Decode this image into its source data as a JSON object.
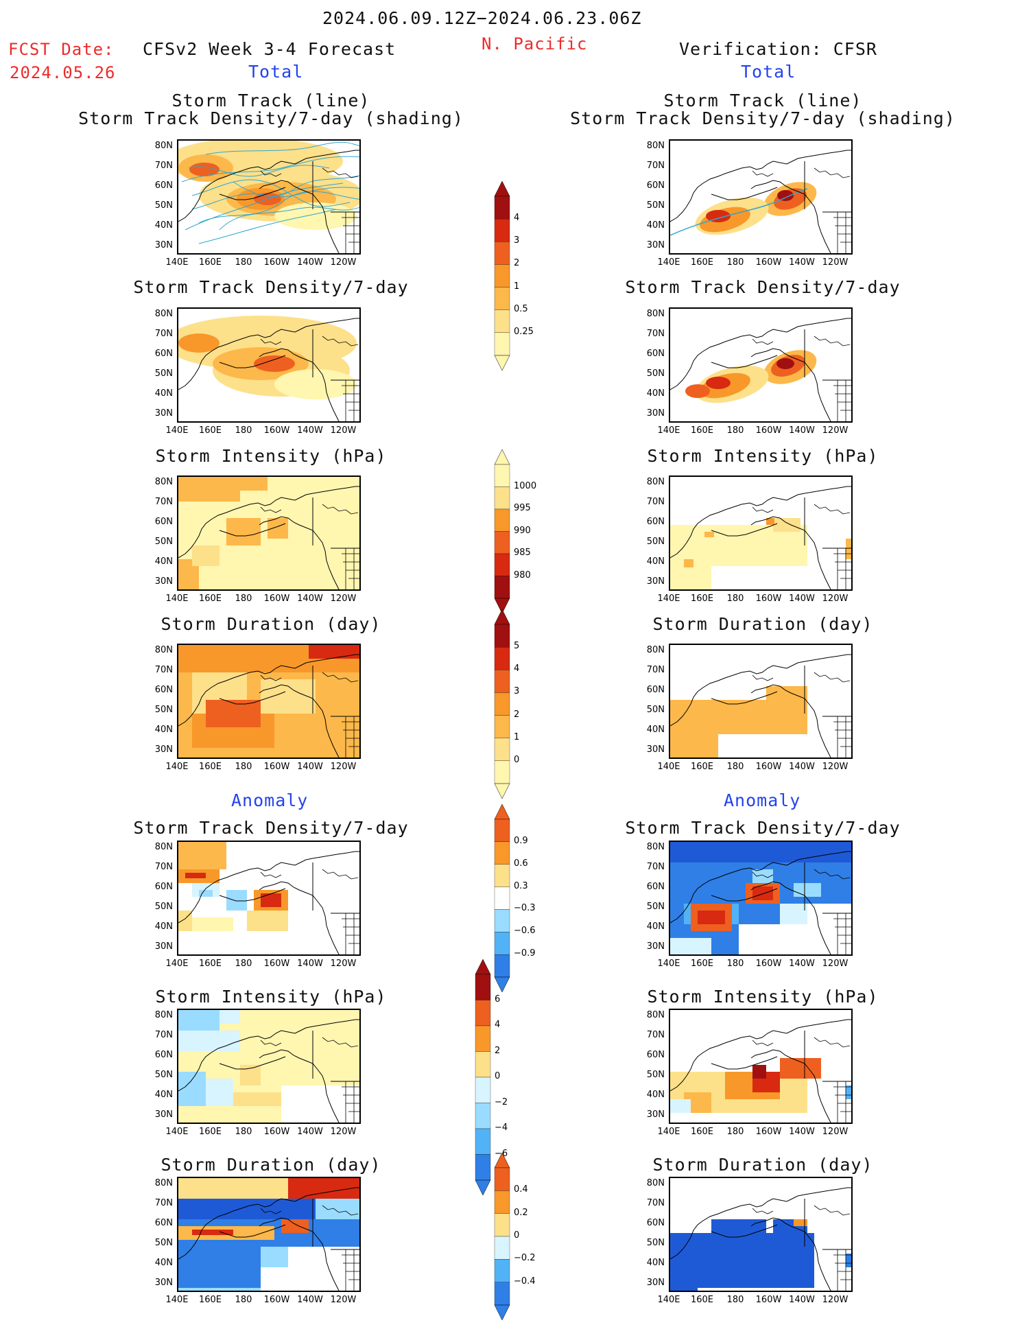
{
  "header": {
    "date_range": "2024.06.09.12Z−2024.06.23.06Z",
    "fcst_label": "FCST Date:",
    "fcst_date": "2024.05.26",
    "model_title": "CFSv2 Week 3-4 Forecast",
    "region": "N. Pacific",
    "verification": "Verification: CFSR",
    "total_left": "Total",
    "total_right": "Total",
    "anomaly_left": "Anomaly",
    "anomaly_right": "Anomaly"
  },
  "axis": {
    "lat_ticks": [
      "80N",
      "70N",
      "60N",
      "50N",
      "40N",
      "30N"
    ],
    "lon_ticks": [
      "140E",
      "160E",
      "180",
      "160W",
      "140W",
      "120W"
    ]
  },
  "panels": {
    "r1_title_a": "Storm Track (line)",
    "r1_title_b": "Storm Track Density/7-day (shading)",
    "density": "Storm Track Density/7-day",
    "intensity": "Storm Intensity (hPa)",
    "duration": "Storm Duration (day)"
  },
  "colorbars": {
    "density_total": [
      "4",
      "3",
      "2",
      "1",
      "0.5",
      "0.25"
    ],
    "intensity_total": [
      "1000",
      "995",
      "990",
      "985",
      "980"
    ],
    "duration_total": [
      "5",
      "4",
      "3",
      "2",
      "1",
      "0"
    ],
    "density_anom": [
      "0.9",
      "0.6",
      "0.3",
      "−0.3",
      "−0.6",
      "−0.9"
    ],
    "intensity_anom": [
      "6",
      "4",
      "2",
      "0",
      "−2",
      "−4",
      "−6"
    ],
    "duration_anom": [
      "0.4",
      "0.2",
      "0",
      "−0.2",
      "−0.4"
    ]
  },
  "colors": {
    "warm": [
      "#fff6b0",
      "#fde08a",
      "#fcb84a",
      "#f8982a",
      "#ee6020",
      "#d82a10",
      "#a01010"
    ],
    "cool": [
      "#d8f4ff",
      "#9adcff",
      "#52b2f6",
      "#2f7fe6",
      "#1f5ad6"
    ]
  },
  "chart_data": [
    {
      "type": "heatmap",
      "title": "Storm Track (line) Storm Track Density/7-day (shading)",
      "source": "CFSv2 Week 3-4 Forecast",
      "variable": "density_total",
      "levels": [
        0.25,
        0.5,
        1,
        2,
        3,
        4
      ],
      "max_region": "Aleutians near 50N,170W; secondary near 65N,145E"
    },
    {
      "type": "heatmap",
      "title": "Storm Track (line) Storm Track Density/7-day (shading)",
      "source": "CFSR",
      "variable": "density_total",
      "levels": [
        0.25,
        0.5,
        1,
        2,
        3,
        4
      ],
      "max_region": "40-45N,165E-180 and 50-55N,160W"
    },
    {
      "type": "heatmap",
      "title": "Storm Track Density/7-day",
      "source": "CFSv2 Week 3-4 Forecast",
      "variable": "density_total"
    },
    {
      "type": "heatmap",
      "title": "Storm Track Density/7-day",
      "source": "CFSR",
      "variable": "density_total"
    },
    {
      "type": "heatmap",
      "title": "Storm Intensity (hPa)",
      "source": "CFSv2 Week 3-4 Forecast",
      "variable": "intensity_total",
      "levels": [
        980,
        985,
        990,
        995,
        1000
      ]
    },
    {
      "type": "heatmap",
      "title": "Storm Intensity (hPa)",
      "source": "CFSR",
      "variable": "intensity_total",
      "levels": [
        980,
        985,
        990,
        995,
        1000
      ]
    },
    {
      "type": "heatmap",
      "title": "Storm Duration (day)",
      "source": "CFSv2 Week 3-4 Forecast",
      "variable": "duration_total",
      "levels": [
        0,
        1,
        2,
        3,
        4,
        5
      ]
    },
    {
      "type": "heatmap",
      "title": "Storm Duration (day)",
      "source": "CFSR",
      "variable": "duration_total",
      "levels": [
        0,
        1,
        2,
        3,
        4,
        5
      ]
    },
    {
      "type": "heatmap",
      "title": "Storm Track Density/7-day",
      "source": "CFSv2 Week 3-4 Forecast",
      "variable": "density_anom",
      "levels": [
        -0.9,
        -0.6,
        -0.3,
        0.3,
        0.6,
        0.9
      ]
    },
    {
      "type": "heatmap",
      "title": "Storm Track Density/7-day",
      "source": "CFSR",
      "variable": "density_anom",
      "levels": [
        -0.9,
        -0.6,
        -0.3,
        0.3,
        0.6,
        0.9
      ]
    },
    {
      "type": "heatmap",
      "title": "Storm Intensity (hPa)",
      "source": "CFSv2 Week 3-4 Forecast",
      "variable": "intensity_anom",
      "levels": [
        -6,
        -4,
        -2,
        0,
        2,
        4,
        6
      ]
    },
    {
      "type": "heatmap",
      "title": "Storm Intensity (hPa)",
      "source": "CFSR",
      "variable": "intensity_anom",
      "levels": [
        -6,
        -4,
        -2,
        0,
        2,
        4,
        6
      ]
    },
    {
      "type": "heatmap",
      "title": "Storm Duration (day)",
      "source": "CFSv2 Week 3-4 Forecast",
      "variable": "duration_anom",
      "levels": [
        -0.4,
        -0.2,
        0,
        0.2,
        0.4
      ]
    },
    {
      "type": "heatmap",
      "title": "Storm Duration (day)",
      "source": "CFSR",
      "variable": "duration_anom",
      "levels": [
        -0.4,
        -0.2,
        0,
        0.2,
        0.4
      ]
    }
  ]
}
